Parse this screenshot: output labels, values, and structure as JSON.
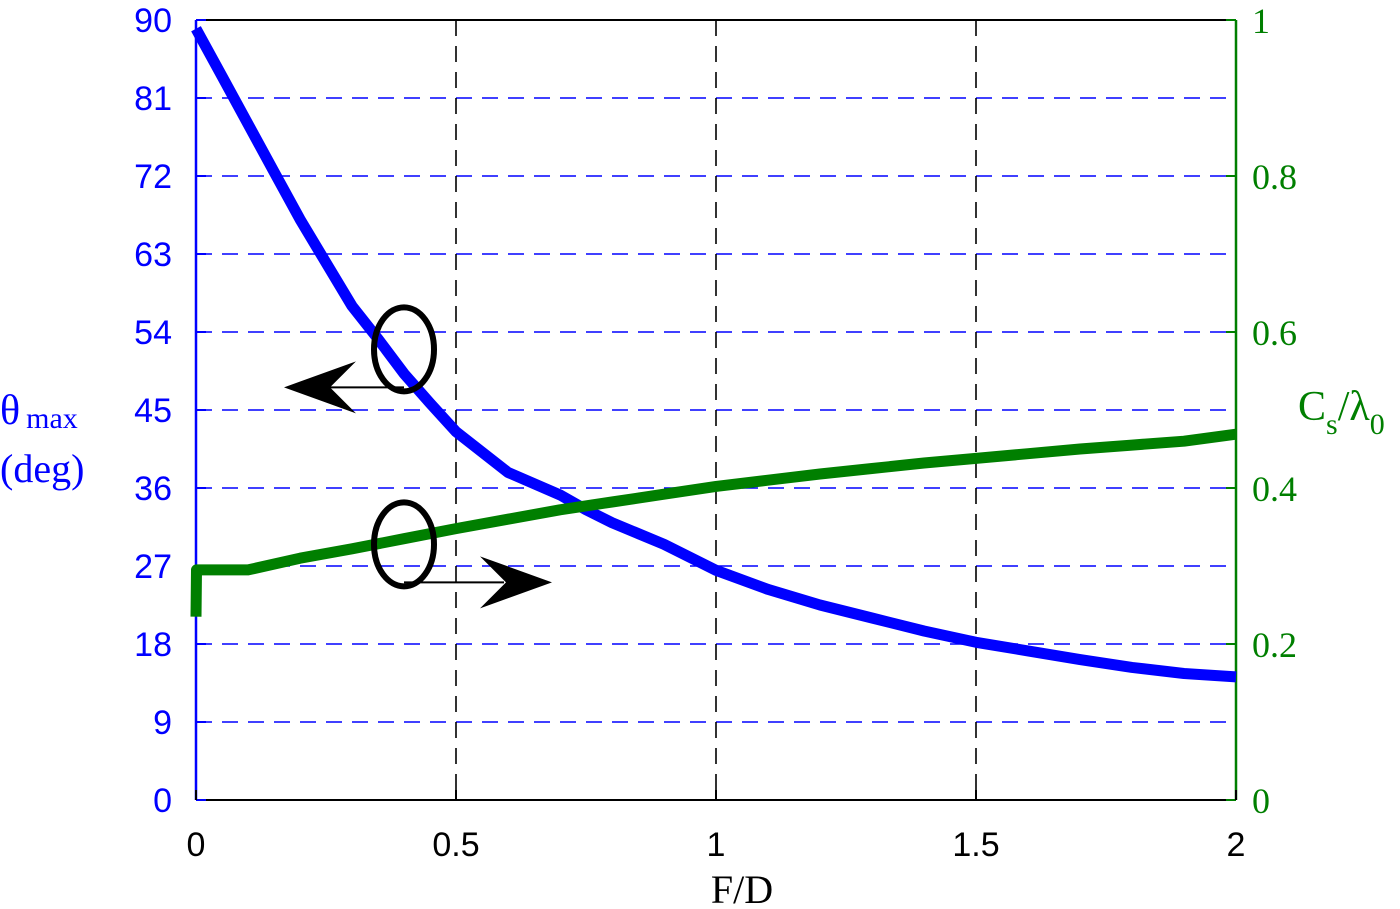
{
  "chart_data": {
    "type": "line",
    "xlabel": "F/D",
    "xlim": [
      0,
      2
    ],
    "x_ticks": [
      "0",
      "0.5",
      "1",
      "1.5",
      "2"
    ],
    "y_left": {
      "label_main": "θ",
      "label_sub": "max",
      "label_unit": "(deg)",
      "lim": [
        0,
        90
      ],
      "ticks": [
        "0",
        "9",
        "18",
        "27",
        "36",
        "45",
        "54",
        "63",
        "72",
        "81",
        "90"
      ],
      "color": "#0000ff"
    },
    "y_right": {
      "label_main": "C",
      "label_sub1": "s",
      "label_slash": "/λ",
      "label_sub2": "0",
      "lim": [
        0,
        1
      ],
      "ticks": [
        "0",
        "0.2",
        "0.4",
        "0.6",
        "0.8",
        "1"
      ],
      "color": "#007f00"
    },
    "grid": true,
    "series": [
      {
        "axis": "left",
        "color": "#0000ff",
        "x": [
          0,
          0.05,
          0.1,
          0.15,
          0.2,
          0.25,
          0.3,
          0.35,
          0.4,
          0.45,
          0.5,
          0.6,
          0.7,
          0.75,
          0.8,
          0.9,
          1.0,
          1.1,
          1.2,
          1.3,
          1.4,
          1.5,
          1.6,
          1.7,
          1.8,
          1.9,
          2.0
        ],
        "y": [
          89,
          83.5,
          78,
          72.5,
          67,
          62,
          57,
          53.2,
          49.2,
          45.8,
          42.5,
          37.8,
          35.2,
          33.5,
          32,
          29.5,
          26.5,
          24.3,
          22.5,
          21,
          19.5,
          18.2,
          17.2,
          16.2,
          15.3,
          14.6,
          14.2
        ]
      },
      {
        "axis": "right",
        "color": "#007f00",
        "x": [
          0,
          0.001,
          0.1,
          0.2,
          0.3,
          0.4,
          0.5,
          0.6,
          0.7,
          0.8,
          0.9,
          1.0,
          1.1,
          1.2,
          1.3,
          1.4,
          1.5,
          1.6,
          1.7,
          1.8,
          1.9,
          2.0
        ],
        "y": [
          0.235,
          0.295,
          0.295,
          0.31,
          0.322,
          0.335,
          0.348,
          0.36,
          0.372,
          0.382,
          0.392,
          0.402,
          0.41,
          0.418,
          0.425,
          0.432,
          0.438,
          0.444,
          0.45,
          0.455,
          0.46,
          0.469
        ]
      }
    ],
    "annotations": [
      {
        "kind": "circle-arrow",
        "points_to": "left",
        "x": 0.4,
        "y_axis": "left",
        "y": 52
      },
      {
        "kind": "circle-arrow",
        "points_to": "right",
        "x": 0.4,
        "y_axis": "left",
        "y": 29.5
      }
    ]
  }
}
